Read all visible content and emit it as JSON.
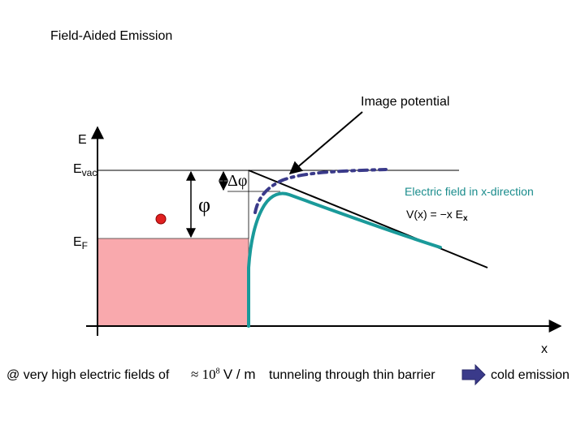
{
  "title": "Field-Aided Emission",
  "labels": {
    "image_potential": "Image potential",
    "energy_axis": "E",
    "e_vac_main": "E",
    "e_vac_sub": "vac",
    "e_f_main": "E",
    "e_f_sub": "F",
    "delta_phi": "Δφ",
    "phi": "φ",
    "electric_field": "Electric field in x-direction",
    "potential_main": "V(x) = −x E",
    "potential_sub": "x",
    "x_axis": "x"
  },
  "caption": {
    "prefix": "@ very high electric fields of",
    "approx": "≈",
    "value_base": "10",
    "value_exp": "8",
    "units": "V / m",
    "tunneling": "tunneling through thin barrier",
    "result": "cold emission"
  },
  "colors": {
    "metal_fill": "#f9a9ad",
    "barrier_curve": "#1a9a9a",
    "image_curve": "#3a3a8a",
    "electron": "#e02020",
    "arrow_fill": "#3a3a8a"
  }
}
